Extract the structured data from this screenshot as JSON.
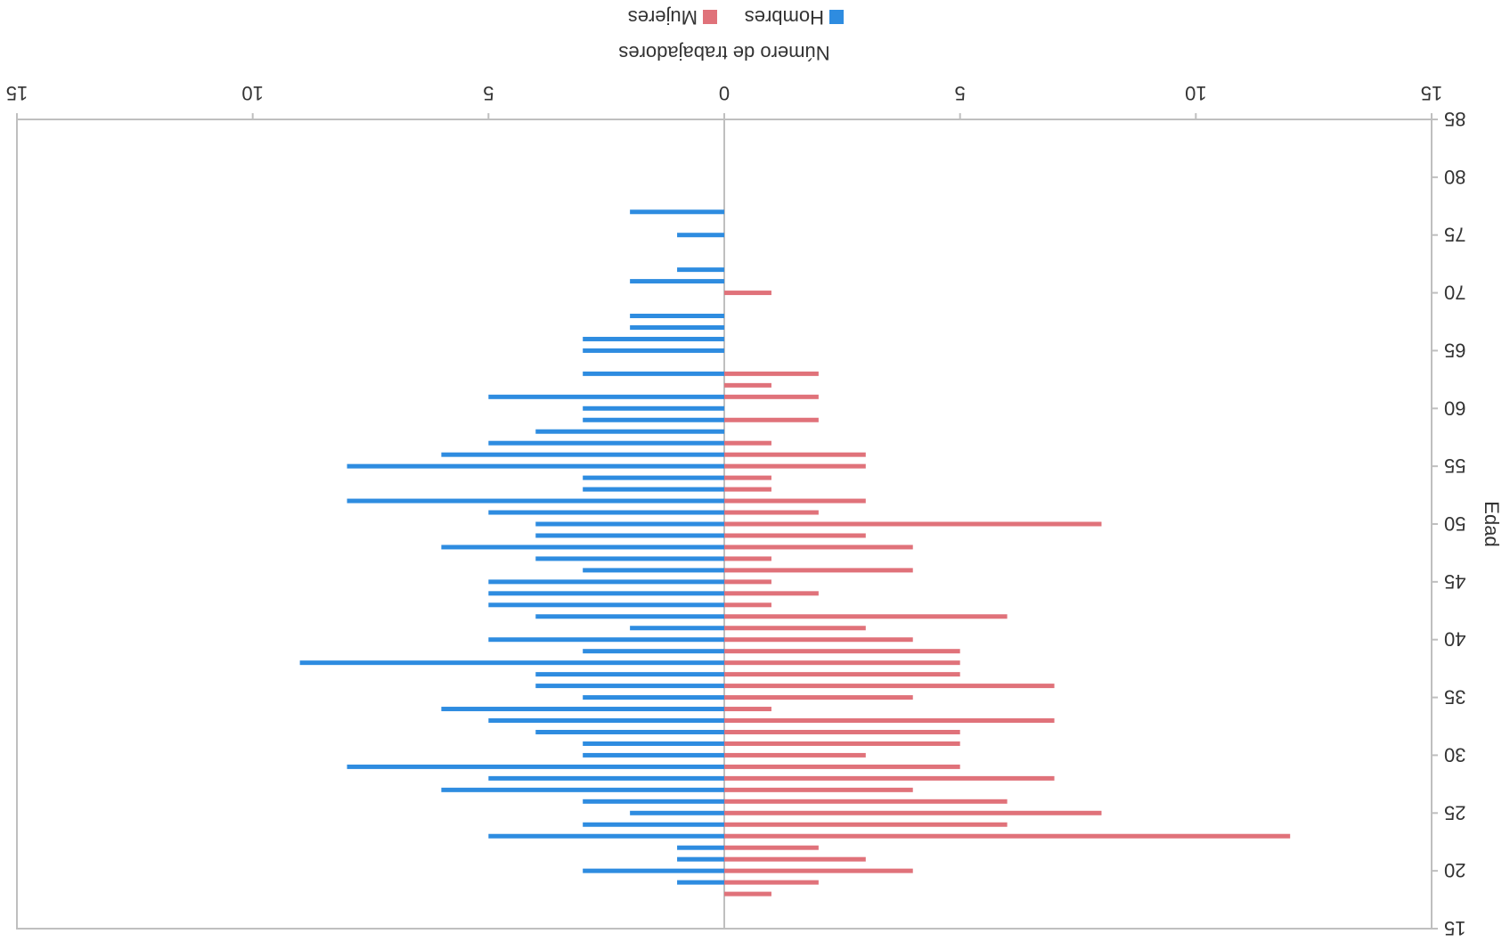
{
  "chart_data": {
    "type": "bar",
    "orientation": "horizontal",
    "layout": "population-pyramid",
    "xlabel": "Número de trabajadores",
    "ylabel": "Edad",
    "xlim": [
      -15,
      15
    ],
    "ylim": [
      15,
      85
    ],
    "x_ticks": [
      -15,
      -10,
      -5,
      0,
      5,
      10,
      15
    ],
    "x_tick_labels": [
      "15",
      "10",
      "5",
      "0",
      "5",
      "10",
      "15"
    ],
    "y_ticks": [
      15,
      20,
      25,
      30,
      35,
      40,
      45,
      50,
      55,
      60,
      65,
      70,
      75,
      80,
      85
    ],
    "y_tick_labels": [
      "15",
      "20",
      "25",
      "30",
      "35",
      "40",
      "45",
      "50",
      "55",
      "60",
      "65",
      "70",
      "75",
      "80",
      "85"
    ],
    "grid": false,
    "legend": "top",
    "colors": {
      "Hombres": "#2e8ce0",
      "Mujeres": "#e0727a",
      "axis": "#bfbfbf"
    },
    "ages": [
      18,
      19,
      20,
      21,
      22,
      23,
      24,
      25,
      26,
      27,
      28,
      29,
      30,
      31,
      32,
      33,
      34,
      35,
      36,
      37,
      38,
      39,
      40,
      41,
      42,
      43,
      44,
      45,
      46,
      47,
      48,
      49,
      50,
      51,
      52,
      53,
      54,
      55,
      56,
      57,
      58,
      59,
      60,
      61,
      62,
      63,
      64,
      65,
      66,
      67,
      68,
      69,
      70,
      71,
      72,
      73,
      74,
      75,
      76,
      77
    ],
    "series": [
      {
        "name": "Hombres",
        "values": [
          0,
          1,
          3,
          1,
          1,
          5,
          3,
          2,
          3,
          6,
          5,
          8,
          3,
          3,
          4,
          5,
          6,
          3,
          4,
          4,
          9,
          3,
          5,
          2,
          4,
          5,
          5,
          5,
          3,
          4,
          6,
          4,
          4,
          5,
          8,
          3,
          3,
          8,
          6,
          5,
          4,
          3,
          3,
          5,
          0,
          3,
          0,
          3,
          3,
          2,
          2,
          0,
          0,
          2,
          1,
          0,
          0,
          1,
          0,
          2
        ]
      },
      {
        "name": "Mujeres",
        "values": [
          1,
          2,
          4,
          3,
          2,
          12,
          6,
          8,
          6,
          4,
          7,
          5,
          3,
          5,
          5,
          7,
          1,
          4,
          7,
          5,
          5,
          5,
          4,
          3,
          6,
          1,
          2,
          1,
          4,
          1,
          4,
          3,
          8,
          2,
          3,
          1,
          1,
          3,
          3,
          1,
          0,
          2,
          0,
          2,
          1,
          2,
          0,
          0,
          0,
          0,
          0,
          0,
          1,
          0,
          0,
          0,
          0,
          0,
          0,
          0
        ]
      }
    ]
  }
}
